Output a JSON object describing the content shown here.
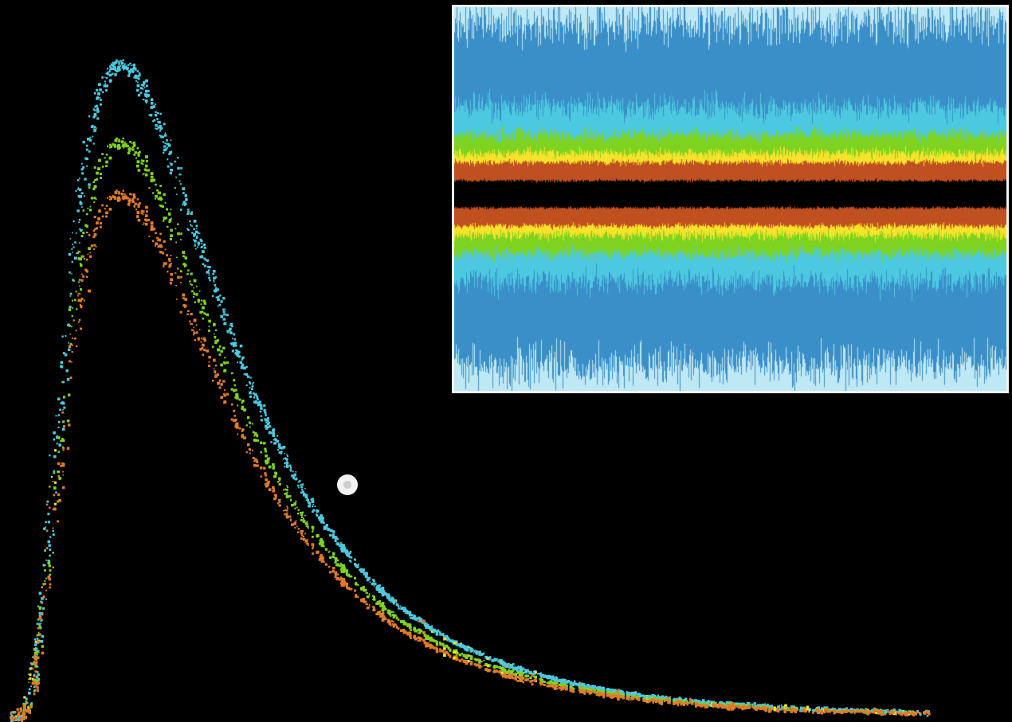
{
  "figure": {
    "background": "#000000",
    "left_plot": {
      "kind": "scatter-curves",
      "curves": [
        {
          "color": "#4cc9e0",
          "peak": 1.0
        },
        {
          "color": "#7ed321",
          "peak": 0.88
        },
        {
          "color": "#e07a2a",
          "peak": 0.8
        }
      ],
      "accent_colors": [
        "#f5e22a",
        "#e07a2a"
      ],
      "marker_color": "#ffffff"
    },
    "inset": {
      "kind": "waveform-bands",
      "band_colors": [
        "#bfe8f5",
        "#3a8fc8",
        "#4cc9e0",
        "#7ed321",
        "#f5e22a",
        "#c0501f",
        "#000000"
      ]
    }
  }
}
